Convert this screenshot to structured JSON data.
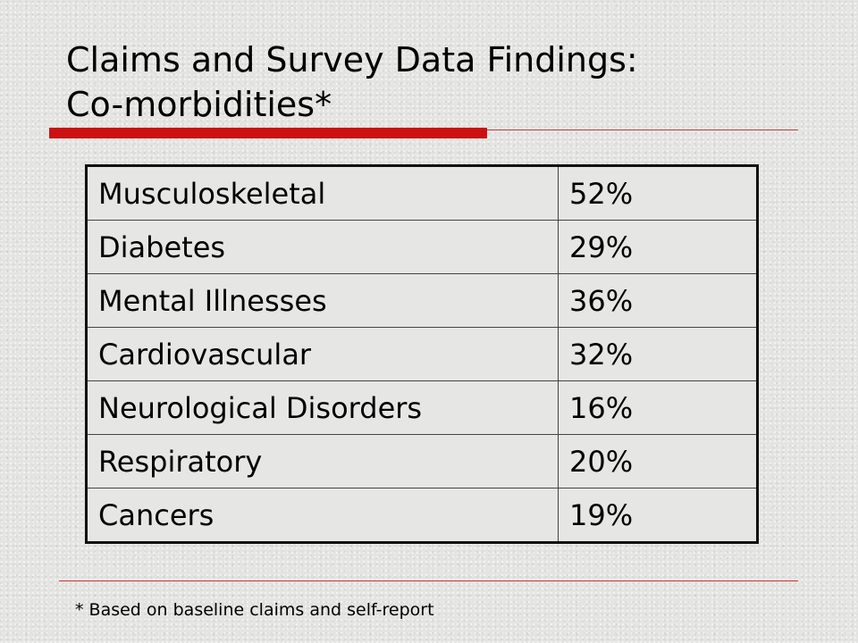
{
  "slide": {
    "title_line1": "Claims and Survey Data Findings:",
    "title_line2": "Co-morbidities*",
    "accent_color": "#cc1111",
    "rows": [
      {
        "condition": "Musculoskeletal",
        "percent": "52%"
      },
      {
        "condition": "Diabetes",
        "percent": "29%"
      },
      {
        "condition": "Mental Illnesses",
        "percent": "36%"
      },
      {
        "condition": "Cardiovascular",
        "percent": "32%"
      },
      {
        "condition": "Neurological Disorders",
        "percent": "16%"
      },
      {
        "condition": "Respiratory",
        "percent": "20%"
      },
      {
        "condition": "Cancers",
        "percent": "19%"
      }
    ],
    "footnote": "* Based on baseline claims and self-report"
  }
}
